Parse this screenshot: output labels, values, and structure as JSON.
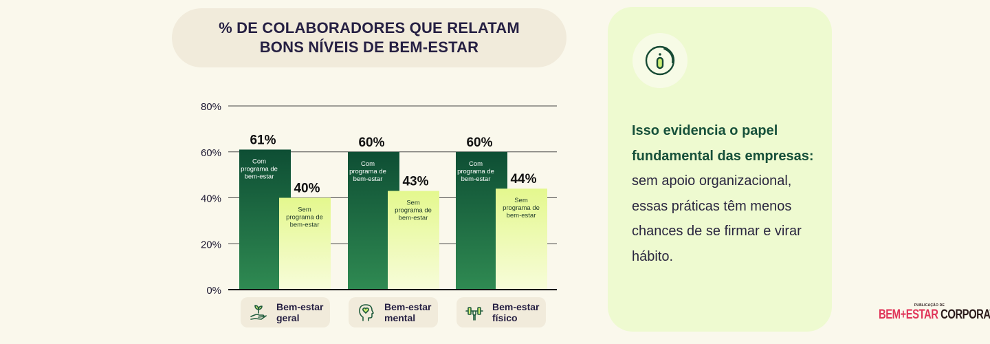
{
  "header": {
    "title_line1": "% DE COLABORADORES QUE RELATAM",
    "title_line2": "BONS NÍVEIS DE BEM-ESTAR"
  },
  "chart_data": {
    "type": "bar",
    "ylim": [
      0,
      80
    ],
    "yticks": [
      "0%",
      "20%",
      "40%",
      "60%",
      "80%"
    ],
    "categories": [
      "Bem-estar geral",
      "Bem-estar mental",
      "Bem-estar físico"
    ],
    "series": [
      {
        "name": "Com programa de bem-estar",
        "values": [
          61,
          60,
          60
        ],
        "color_top": "#0e4e34",
        "color_bottom": "#2f8a52"
      },
      {
        "name": "Sem programa de bem-estar",
        "values": [
          40,
          43,
          44
        ],
        "color_top": "#e4f88e",
        "color_bottom": "#f7fcd9"
      }
    ],
    "data_labels": [
      [
        "61%",
        "60%",
        "60%"
      ],
      [
        "40%",
        "43%",
        "44%"
      ]
    ],
    "inner_labels": [
      [
        "Com",
        "programa de",
        "bem-estar"
      ],
      [
        "Sem",
        "programa de",
        "bem-estar"
      ]
    ],
    "grid": true
  },
  "categories": [
    {
      "line1": "Bem-estar",
      "line2": "geral",
      "icon": "hand-plant-icon"
    },
    {
      "line1": "Bem-estar",
      "line2": "mental",
      "icon": "head-heart-icon"
    },
    {
      "line1": "Bem-estar",
      "line2": "físico",
      "icon": "dumbbell-icon"
    }
  ],
  "info": {
    "icon": "info-icon",
    "bold": "Isso evidencia o papel fundamental das empresas:",
    "rest": " sem apoio organizacional, essas práticas têm menos chances de se firmar e virar hábito."
  },
  "brand": {
    "top": "PUBLICAÇÃO DE",
    "part1": "BEM",
    "plus": "+",
    "part2": "ESTAR",
    "part3": " CORPORATIVO"
  },
  "colors": {
    "background": "#faf8ec",
    "title_pill": "#f1ebdb",
    "info_card": "#eefad0",
    "accent_green": "#16503a",
    "brand_pink": "#e0365a"
  }
}
